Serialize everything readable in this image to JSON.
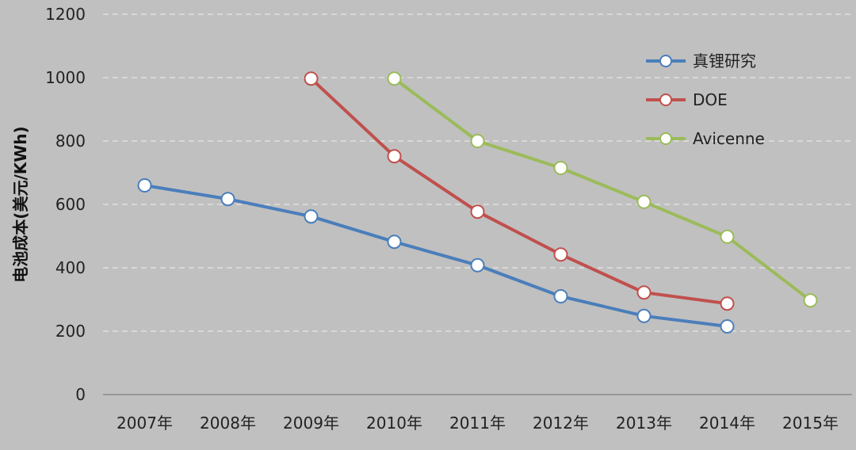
{
  "chart_data": {
    "type": "line",
    "title": "",
    "xlabel": "",
    "ylabel": "电池成本(美元/KWh)",
    "categories": [
      "2007年",
      "2008年",
      "2009年",
      "2010年",
      "2011年",
      "2012年",
      "2013年",
      "2014年",
      "2015年"
    ],
    "ylim": [
      0,
      1200
    ],
    "yticks": [
      0,
      200,
      400,
      600,
      800,
      1000,
      1200
    ],
    "grid": true,
    "legend_position": "top-right",
    "series": [
      {
        "name": "真锂研究",
        "color": "#4a7ebb",
        "values": [
          660,
          617,
          562,
          482,
          408,
          310,
          248,
          215,
          null
        ]
      },
      {
        "name": "DOE",
        "color": "#c0504d",
        "values": [
          null,
          null,
          997,
          752,
          577,
          442,
          322,
          287,
          null
        ]
      },
      {
        "name": "Avicenne",
        "color": "#9bbb59",
        "values": [
          null,
          null,
          null,
          997,
          800,
          715,
          608,
          498,
          297
        ]
      }
    ]
  }
}
